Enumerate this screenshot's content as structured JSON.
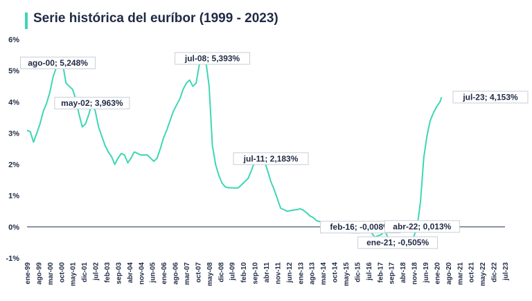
{
  "chart_data": {
    "type": "line",
    "title": "Serie histórica del euríbor (1999 - 2023)",
    "ylim": [
      -1,
      6
    ],
    "yticks": [
      "-1%",
      "0%",
      "1%",
      "2%",
      "3%",
      "4%",
      "5%",
      "6%"
    ],
    "xticks": [
      "ene-99",
      "ago-99",
      "mar-00",
      "oct-00",
      "may-01",
      "dic-01",
      "jul-02",
      "feb-03",
      "sep-03",
      "abr-04",
      "nov-04",
      "jun-05",
      "ene-06",
      "ago-06",
      "mar-07",
      "oct-07",
      "may-08",
      "dic-08",
      "jul-09",
      "feb-10",
      "sep-10",
      "abr-11",
      "nov-11",
      "jun-12",
      "ene-13",
      "ago-13",
      "mar-14",
      "oct-14",
      "may-15",
      "dic-15",
      "jul-16",
      "feb-17",
      "sep-17",
      "abr-18",
      "nov-18",
      "jun-19",
      "ene-20",
      "ago-20",
      "mar-21",
      "oct-21",
      "may-22",
      "dic-22",
      "jul-23"
    ],
    "line_color": "#3dd6b5",
    "series": [
      {
        "points": [
          [
            0,
            3.09
          ],
          [
            2,
            3.05
          ],
          [
            4,
            2.71
          ],
          [
            6,
            3.0
          ],
          [
            8,
            3.3
          ],
          [
            10,
            3.7
          ],
          [
            12,
            3.95
          ],
          [
            14,
            4.3
          ],
          [
            16,
            4.8
          ],
          [
            18,
            5.1
          ],
          [
            20,
            5.248
          ],
          [
            22,
            5.21
          ],
          [
            24,
            4.6
          ],
          [
            26,
            4.5
          ],
          [
            28,
            4.4
          ],
          [
            30,
            4.1
          ],
          [
            32,
            3.6
          ],
          [
            34,
            3.2
          ],
          [
            36,
            3.3
          ],
          [
            38,
            3.6
          ],
          [
            40,
            3.963
          ],
          [
            42,
            3.7
          ],
          [
            44,
            3.2
          ],
          [
            46,
            2.9
          ],
          [
            48,
            2.6
          ],
          [
            50,
            2.4
          ],
          [
            52,
            2.25
          ],
          [
            54,
            2.0
          ],
          [
            56,
            2.2
          ],
          [
            58,
            2.35
          ],
          [
            60,
            2.3
          ],
          [
            62,
            2.05
          ],
          [
            64,
            2.2
          ],
          [
            66,
            2.4
          ],
          [
            68,
            2.35
          ],
          [
            70,
            2.3
          ],
          [
            72,
            2.3
          ],
          [
            74,
            2.3
          ],
          [
            76,
            2.2
          ],
          [
            78,
            2.1
          ],
          [
            80,
            2.2
          ],
          [
            82,
            2.5
          ],
          [
            84,
            2.85
          ],
          [
            86,
            3.1
          ],
          [
            88,
            3.4
          ],
          [
            90,
            3.7
          ],
          [
            92,
            3.9
          ],
          [
            94,
            4.1
          ],
          [
            96,
            4.4
          ],
          [
            98,
            4.6
          ],
          [
            100,
            4.7
          ],
          [
            102,
            4.5
          ],
          [
            104,
            4.6
          ],
          [
            106,
            5.2
          ],
          [
            108,
            5.393
          ],
          [
            110,
            5.3
          ],
          [
            112,
            4.5
          ],
          [
            114,
            2.6
          ],
          [
            116,
            2.0
          ],
          [
            118,
            1.65
          ],
          [
            120,
            1.4
          ],
          [
            122,
            1.28
          ],
          [
            124,
            1.25
          ],
          [
            126,
            1.25
          ],
          [
            128,
            1.24
          ],
          [
            130,
            1.25
          ],
          [
            132,
            1.35
          ],
          [
            134,
            1.45
          ],
          [
            136,
            1.55
          ],
          [
            138,
            1.8
          ],
          [
            140,
            2.1
          ],
          [
            142,
            2.15
          ],
          [
            144,
            2.183
          ],
          [
            146,
            2.1
          ],
          [
            148,
            1.8
          ],
          [
            150,
            1.45
          ],
          [
            152,
            1.2
          ],
          [
            154,
            0.9
          ],
          [
            156,
            0.6
          ],
          [
            158,
            0.55
          ],
          [
            160,
            0.5
          ],
          [
            162,
            0.52
          ],
          [
            164,
            0.54
          ],
          [
            166,
            0.55
          ],
          [
            168,
            0.58
          ],
          [
            170,
            0.53
          ],
          [
            172,
            0.45
          ],
          [
            174,
            0.35
          ],
          [
            176,
            0.3
          ],
          [
            178,
            0.2
          ],
          [
            180,
            0.17
          ],
          [
            182,
            0.12
          ],
          [
            184,
            0.05
          ],
          [
            186,
            -0.008
          ],
          [
            188,
            -0.04
          ],
          [
            190,
            -0.07
          ],
          [
            192,
            -0.1
          ],
          [
            194,
            -0.12
          ],
          [
            196,
            -0.15
          ],
          [
            198,
            -0.18
          ],
          [
            200,
            -0.19
          ],
          [
            202,
            -0.19
          ],
          [
            204,
            -0.19
          ],
          [
            206,
            -0.18
          ],
          [
            208,
            -0.15
          ],
          [
            210,
            -0.12
          ],
          [
            212,
            -0.2
          ],
          [
            214,
            -0.33
          ],
          [
            216,
            -0.28
          ],
          [
            218,
            -0.25
          ],
          [
            220,
            -0.1
          ],
          [
            222,
            -0.35
          ],
          [
            224,
            -0.48
          ],
          [
            226,
            -0.5
          ],
          [
            228,
            -0.505
          ],
          [
            230,
            -0.5
          ],
          [
            232,
            -0.48
          ],
          [
            234,
            -0.47
          ],
          [
            236,
            -0.45
          ],
          [
            238,
            -0.3
          ],
          [
            240,
            0.013
          ],
          [
            242,
            0.8
          ],
          [
            244,
            2.2
          ],
          [
            246,
            2.9
          ],
          [
            248,
            3.4
          ],
          [
            250,
            3.65
          ],
          [
            252,
            3.85
          ],
          [
            254,
            4.0
          ],
          [
            255,
            4.153
          ]
        ]
      }
    ],
    "annotations": [
      {
        "label": "ago-00; 5,248%",
        "x": 19,
        "y": 5.248
      },
      {
        "label": "may-02; 3,963%",
        "x": 40,
        "y": 3.963
      },
      {
        "label": "jul-08; 5,393%",
        "x": 114,
        "y": 5.393
      },
      {
        "label": "jul-11; 2,183%",
        "x": 150,
        "y": 2.183
      },
      {
        "label": "feb-16; -0,008%",
        "x": 205,
        "y": -0.008
      },
      {
        "label": "abr-22; 0,013%",
        "x": 243,
        "y": 0.013
      },
      {
        "label": "ene-21; -0,505%",
        "x": 228,
        "y": -0.505
      },
      {
        "label": "jul-23; 4,153%",
        "x": 290,
        "y": 4.153
      }
    ]
  }
}
